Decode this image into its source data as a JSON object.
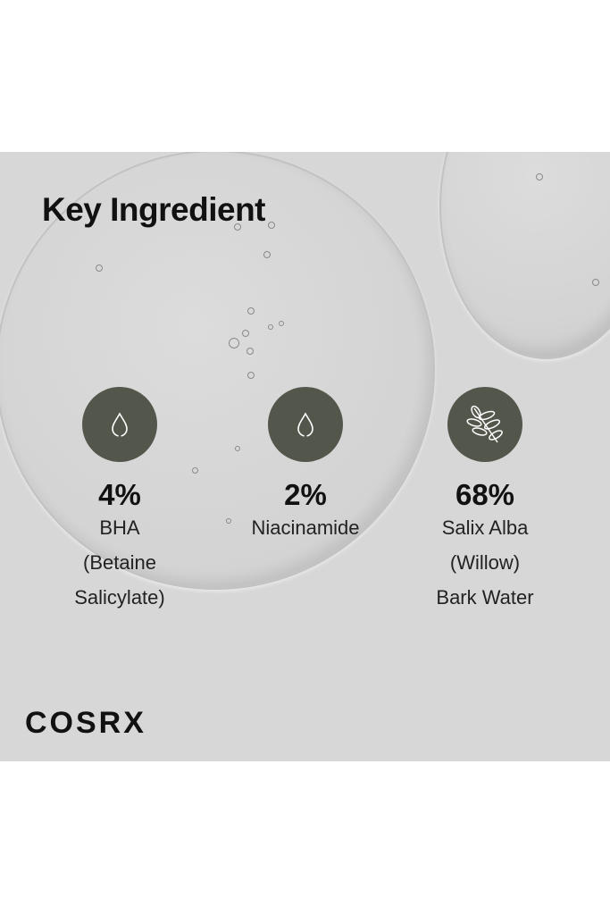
{
  "title": "Key Ingredient",
  "ingredients": [
    {
      "percent": "4%",
      "name_lines": [
        "BHA",
        "(Betaine",
        "Salicylate)"
      ],
      "icon": "water-drop-icon"
    },
    {
      "percent": "2%",
      "name_lines": [
        "Niacinamide"
      ],
      "icon": "water-drop-icon"
    },
    {
      "percent": "68%",
      "name_lines": [
        "Salix Alba",
        "(Willow)",
        "Bark Water"
      ],
      "icon": "willow-leaf-icon"
    }
  ],
  "brand": "COSRX",
  "colors": {
    "panel": "#d7d7d7",
    "icon_circle": "#53564b"
  }
}
